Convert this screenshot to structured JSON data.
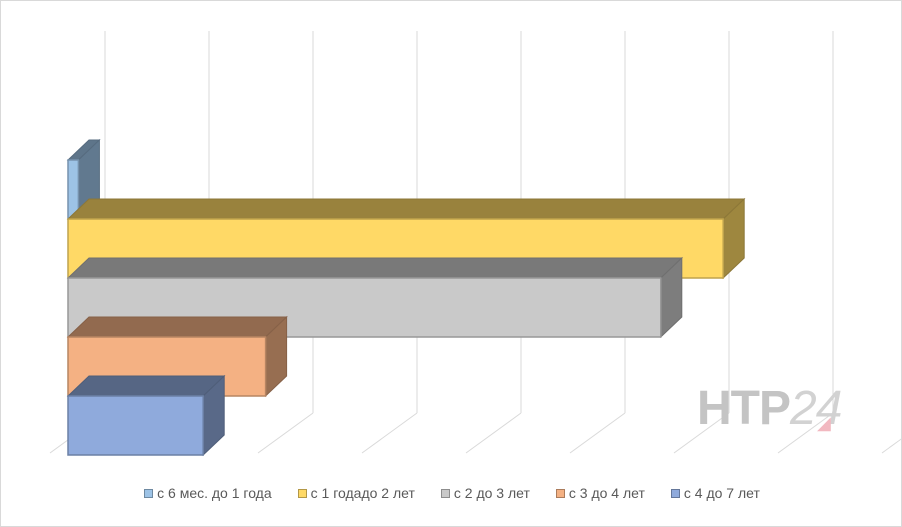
{
  "chart_data": {
    "type": "bar",
    "orientation": "horizontal",
    "three_d": true,
    "categories": [
      ""
    ],
    "series": [
      {
        "name": "с 6 мес. до 1 года",
        "values": [
          0.1
        ],
        "color": "#9dc3e6"
      },
      {
        "name": "с 1 годадо 2 лет",
        "values": [
          6.3
        ],
        "color": "#ffd966"
      },
      {
        "name": "с 2 до 3 лет",
        "values": [
          5.7
        ],
        "color": "#c9c9c9"
      },
      {
        "name": "с 3 до 4 лет",
        "values": [
          1.9
        ],
        "color": "#f4b183"
      },
      {
        "name": "с 4 до 7 лет",
        "values": [
          1.3
        ],
        "color": "#8faadc"
      }
    ],
    "xlim": [
      0,
      7
    ],
    "grid": true,
    "legend_position": "bottom",
    "title": "",
    "xlabel": "",
    "ylabel": ""
  },
  "watermark": {
    "text": "НТР",
    "number": "24"
  }
}
